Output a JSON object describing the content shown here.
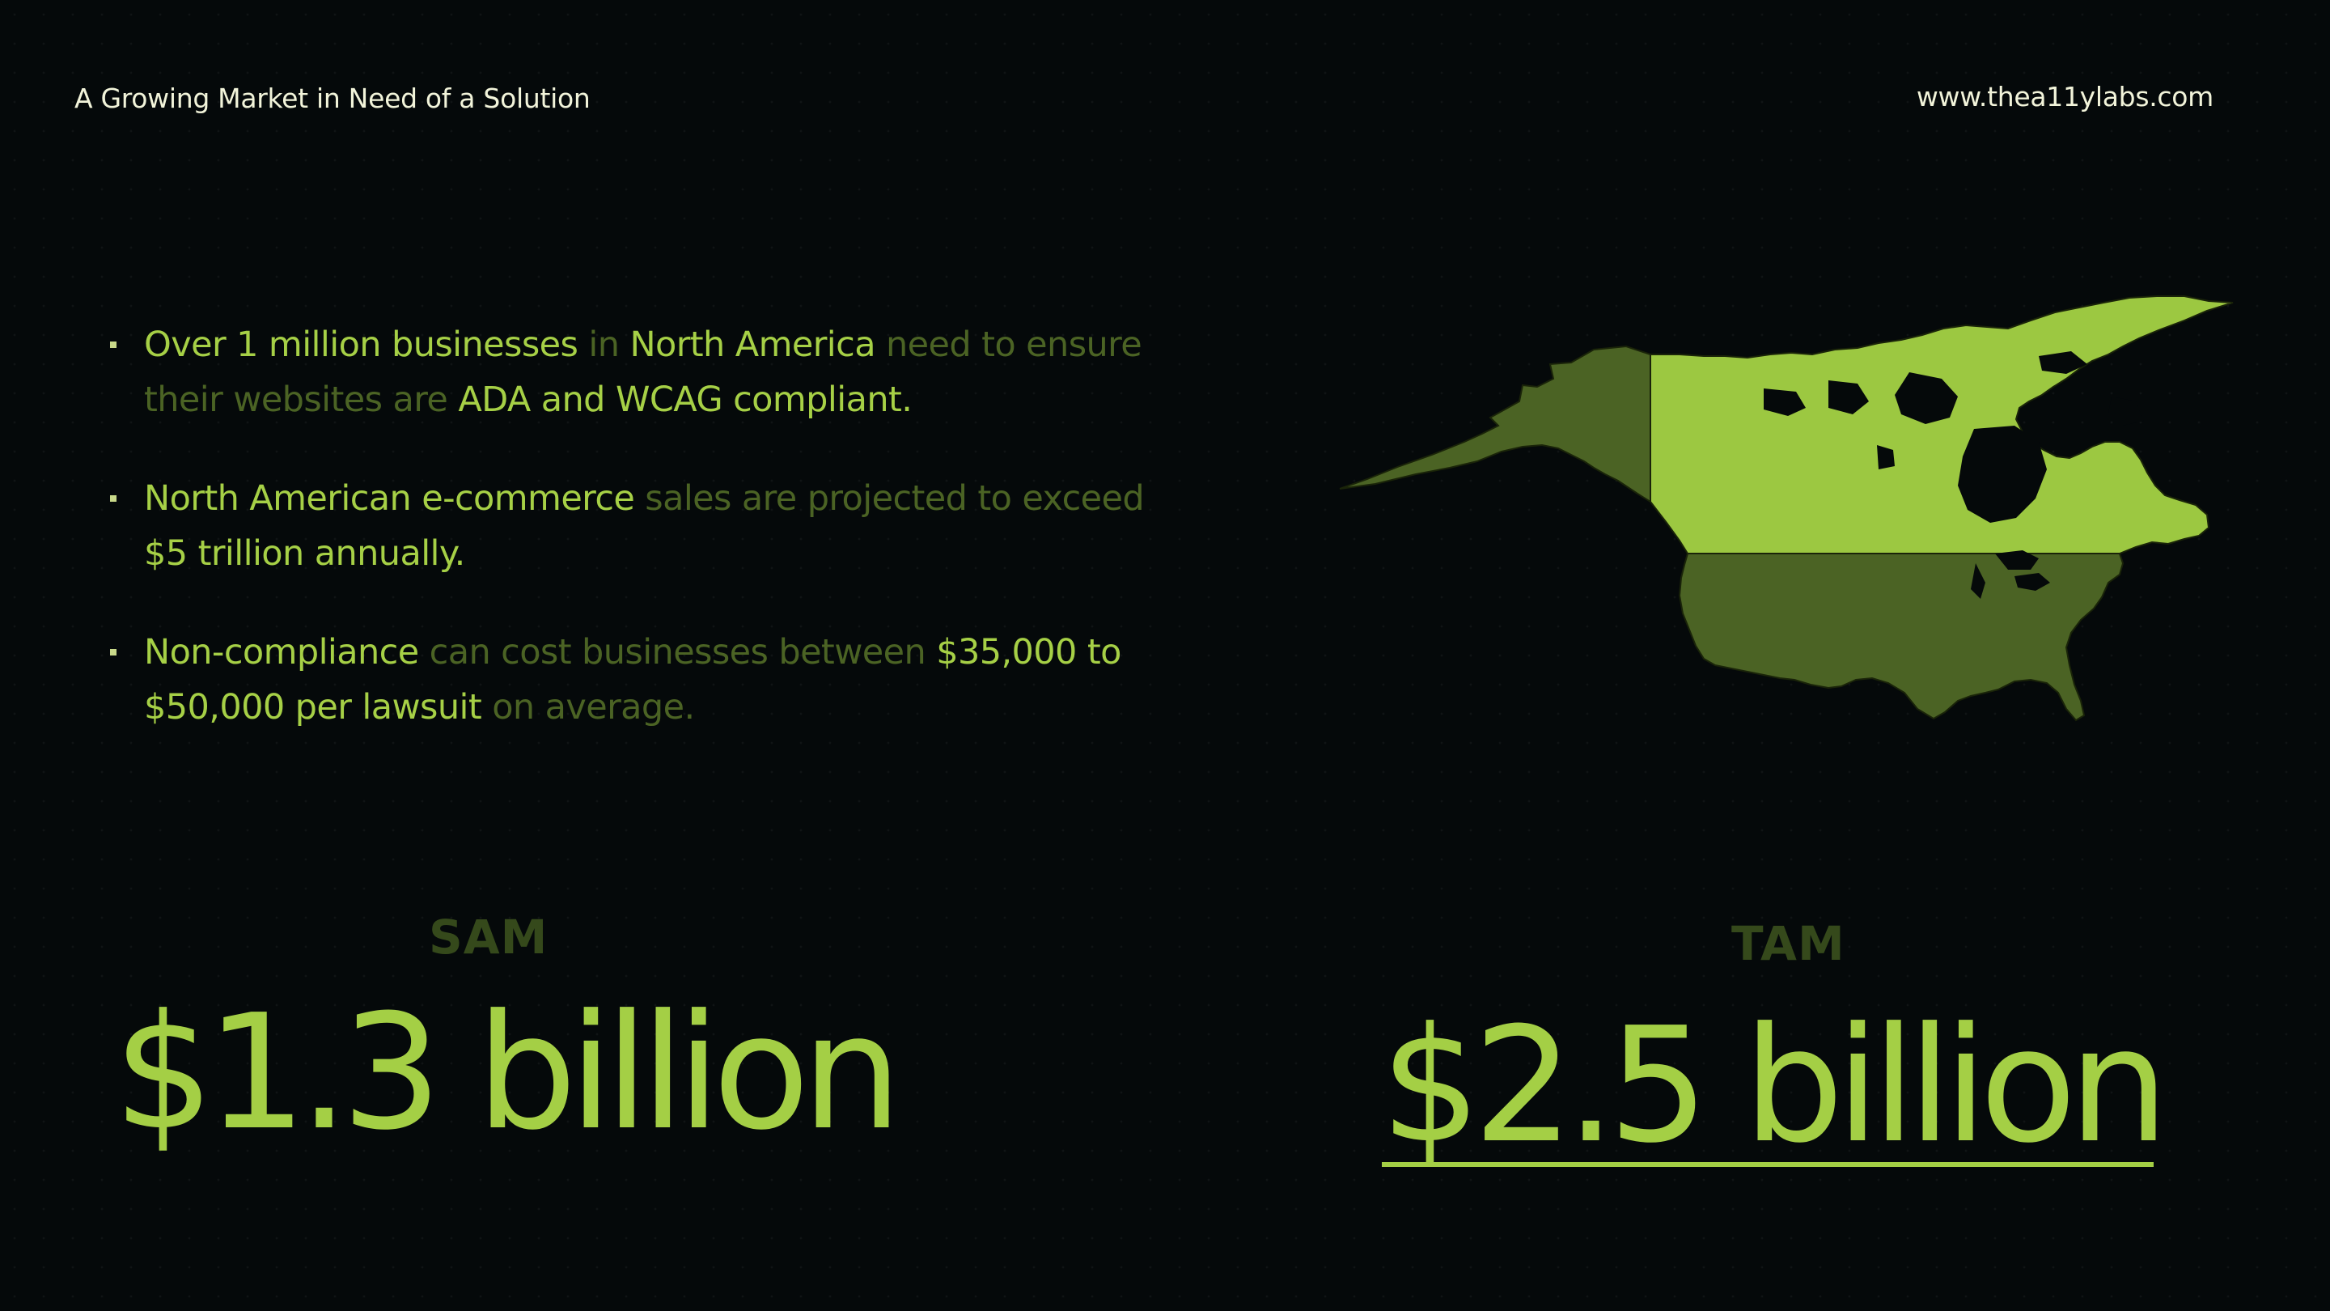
{
  "header": {
    "title": "A Growing Market in Need of a Solution",
    "website": "www.thea11ylabs.com"
  },
  "colors": {
    "background": "#05090a",
    "highlight": "#a6d046",
    "muted": "#4b6324",
    "label": "#35491b",
    "header_text": "#f2f4da"
  },
  "bullets": [
    {
      "segments": [
        {
          "text": "Over 1 million businesses",
          "style": "highlight"
        },
        {
          "text": " in ",
          "style": "muted"
        },
        {
          "text": "North America",
          "style": "highlight"
        },
        {
          "text": " need to ensure their websites are ",
          "style": "muted"
        },
        {
          "text": "ADA and WCAG compliant.",
          "style": "highlight"
        }
      ]
    },
    {
      "segments": [
        {
          "text": "North American e-commerce",
          "style": "highlight"
        },
        {
          "text": " sales are projected to exceed ",
          "style": "muted"
        },
        {
          "text": "$5 trillion annually.",
          "style": "highlight"
        }
      ]
    },
    {
      "segments": [
        {
          "text": "Non-compliance",
          "style": "highlight"
        },
        {
          "text": " can cost businesses between ",
          "style": "muted"
        },
        {
          "text": "$35,000 to $50,000 per lawsuit",
          "style": "highlight"
        },
        {
          "text": " on average.",
          "style": "muted"
        }
      ]
    }
  ],
  "map": {
    "icon": "north-america-map-icon",
    "regions": [
      {
        "name": "alaska",
        "color": "#4b6324"
      },
      {
        "name": "canada",
        "color": "#9cc841"
      },
      {
        "name": "united-states",
        "color": "#4b6324"
      }
    ]
  },
  "sam": {
    "label": "SAM",
    "value": "$1.3 billion"
  },
  "tam": {
    "label": "TAM",
    "value": "$2.5 billion"
  }
}
